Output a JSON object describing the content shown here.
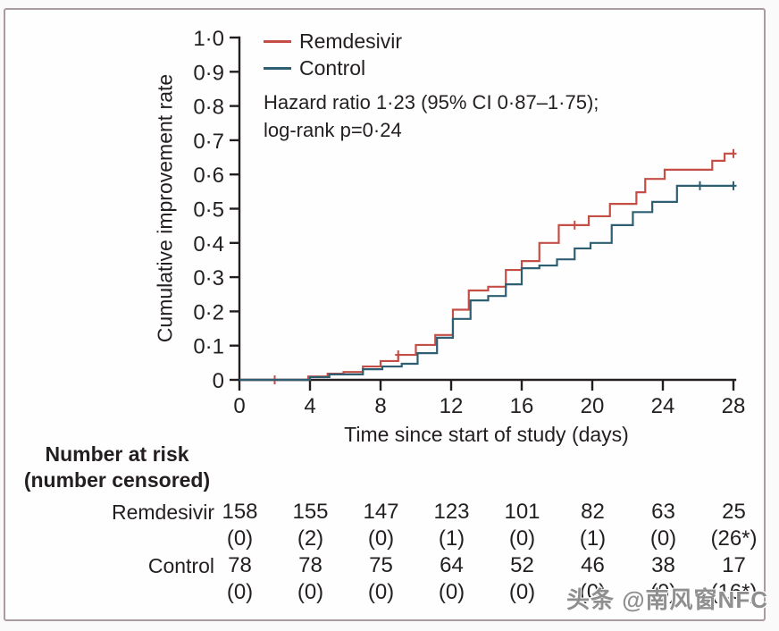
{
  "frame": {
    "border_color": "#ab9aa2",
    "background": "#fffefe"
  },
  "chart_data": {
    "type": "line",
    "subtype": "kaplan-meier-cumulative-incidence-steps",
    "title": "",
    "xlabel": "Time since start of study (days)",
    "ylabel": "Cumulative improvement rate",
    "xlim": [
      0,
      28
    ],
    "ylim": [
      0,
      1.0
    ],
    "grid": "off",
    "legend_position": "top-left-inside",
    "axis_color": "#231f20",
    "xticks": [
      {
        "v": 0,
        "label": "0"
      },
      {
        "v": 4,
        "label": "4"
      },
      {
        "v": 8,
        "label": "8"
      },
      {
        "v": 12,
        "label": "12"
      },
      {
        "v": 16,
        "label": "16"
      },
      {
        "v": 20,
        "label": "20"
      },
      {
        "v": 24,
        "label": "24"
      },
      {
        "v": 28,
        "label": "28"
      }
    ],
    "yticks": [
      {
        "v": 0.0,
        "label": "0"
      },
      {
        "v": 0.1,
        "label": "0·1"
      },
      {
        "v": 0.2,
        "label": "0·2"
      },
      {
        "v": 0.3,
        "label": "0·3"
      },
      {
        "v": 0.4,
        "label": "0·4"
      },
      {
        "v": 0.5,
        "label": "0·5"
      },
      {
        "v": 0.6,
        "label": "0·6"
      },
      {
        "v": 0.7,
        "label": "0·7"
      },
      {
        "v": 0.8,
        "label": "0·8"
      },
      {
        "v": 0.9,
        "label": "0·9"
      },
      {
        "v": 1.0,
        "label": "1·0"
      }
    ],
    "legend": [
      {
        "name": "Remdesivir",
        "color": "#c44e45"
      },
      {
        "name": "Control",
        "color": "#2d5e72"
      }
    ],
    "annotation": {
      "line1": "Hazard ratio 1·23 (95% CI 0·87–1·75);",
      "line2": "log-rank p=0·24"
    },
    "series": [
      {
        "name": "Remdesivir",
        "color": "#c44e45",
        "step_points": [
          [
            0,
            0
          ],
          [
            3.9,
            0.01
          ],
          [
            5,
            0.018
          ],
          [
            5.9,
            0.023
          ],
          [
            7,
            0.039
          ],
          [
            8,
            0.055
          ],
          [
            9,
            0.073
          ],
          [
            10,
            0.102
          ],
          [
            11.1,
            0.131
          ],
          [
            12.1,
            0.205
          ],
          [
            13,
            0.261
          ],
          [
            14.1,
            0.272
          ],
          [
            15.1,
            0.321
          ],
          [
            16,
            0.347
          ],
          [
            17,
            0.4
          ],
          [
            18.1,
            0.452
          ],
          [
            19.8,
            0.478
          ],
          [
            21,
            0.514
          ],
          [
            22.5,
            0.548
          ],
          [
            23,
            0.587
          ],
          [
            24.1,
            0.614
          ],
          [
            26.8,
            0.64
          ],
          [
            27.5,
            0.661
          ],
          [
            28,
            0.661
          ]
        ],
        "censor_marks": [
          [
            2,
            0
          ],
          [
            9,
            0.073
          ],
          [
            19,
            0.452
          ],
          [
            28,
            0.661
          ]
        ]
      },
      {
        "name": "Control",
        "color": "#2d5e72",
        "step_points": [
          [
            0,
            0
          ],
          [
            4,
            0.008
          ],
          [
            5.1,
            0.016
          ],
          [
            7,
            0.031
          ],
          [
            8.1,
            0.039
          ],
          [
            9.2,
            0.047
          ],
          [
            10.1,
            0.078
          ],
          [
            11.2,
            0.123
          ],
          [
            12.1,
            0.178
          ],
          [
            13.1,
            0.232
          ],
          [
            14.1,
            0.245
          ],
          [
            15.1,
            0.279
          ],
          [
            16,
            0.326
          ],
          [
            17,
            0.334
          ],
          [
            18,
            0.352
          ],
          [
            19,
            0.384
          ],
          [
            19.9,
            0.4
          ],
          [
            21.1,
            0.452
          ],
          [
            22.3,
            0.49
          ],
          [
            23.4,
            0.52
          ],
          [
            24.8,
            0.567
          ],
          [
            28,
            0.567
          ]
        ],
        "censor_marks": [
          [
            26.1,
            0.567
          ],
          [
            28,
            0.567
          ]
        ]
      }
    ]
  },
  "risk_table": {
    "header_line1": "Number at risk",
    "header_line2": "(number censored)",
    "rows": [
      {
        "label": "Remdesivir",
        "counts": [
          "158",
          "155",
          "147",
          "123",
          "101",
          "82",
          "63",
          "25"
        ],
        "censored": [
          "(0)",
          "(2)",
          "(0)",
          "(1)",
          "(0)",
          "(1)",
          "(0)",
          "(26*)"
        ]
      },
      {
        "label": "Control",
        "counts": [
          "78",
          "78",
          "75",
          "64",
          "52",
          "46",
          "38",
          "17"
        ],
        "censored": [
          "(0)",
          "(0)",
          "(0)",
          "(0)",
          "(0)",
          "(0)",
          "(0)",
          "(16*)"
        ]
      }
    ]
  },
  "watermark": "头条 @南风窗NFC"
}
